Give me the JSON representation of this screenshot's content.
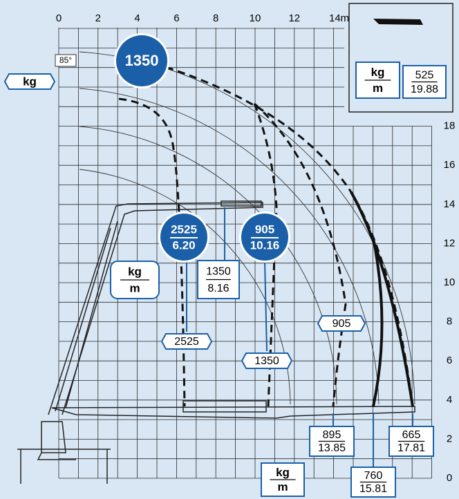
{
  "x_labels": [
    "0",
    "2",
    "4",
    "6",
    "8",
    "10",
    "12",
    "14m"
  ],
  "y_labels": [
    "18",
    "16",
    "14",
    "12",
    "10",
    "8",
    "6",
    "4",
    "2",
    "0"
  ],
  "angle": "85°",
  "unit_kg": "kg",
  "top_load": "1350",
  "circle_loads": [
    {
      "kg": "2525",
      "m": "6.20"
    },
    {
      "kg": "905",
      "m": "10.16"
    }
  ],
  "unit_box": {
    "kg": "kg",
    "m": "m"
  },
  "mid_load": {
    "kg": "1350",
    "m": "8.16"
  },
  "hex_loads": [
    "2525",
    "1350",
    "905"
  ],
  "bottom_loads": [
    {
      "kg": "895",
      "m": "13.85"
    },
    {
      "kg": "760",
      "m": "15.81"
    },
    {
      "kg": "665",
      "m": "17.81"
    }
  ],
  "bottom_unit": {
    "kg": "kg",
    "m": "m"
  },
  "inset": {
    "unit_kg": "kg",
    "unit_m": "m",
    "kg": "525",
    "m": "19.88"
  }
}
